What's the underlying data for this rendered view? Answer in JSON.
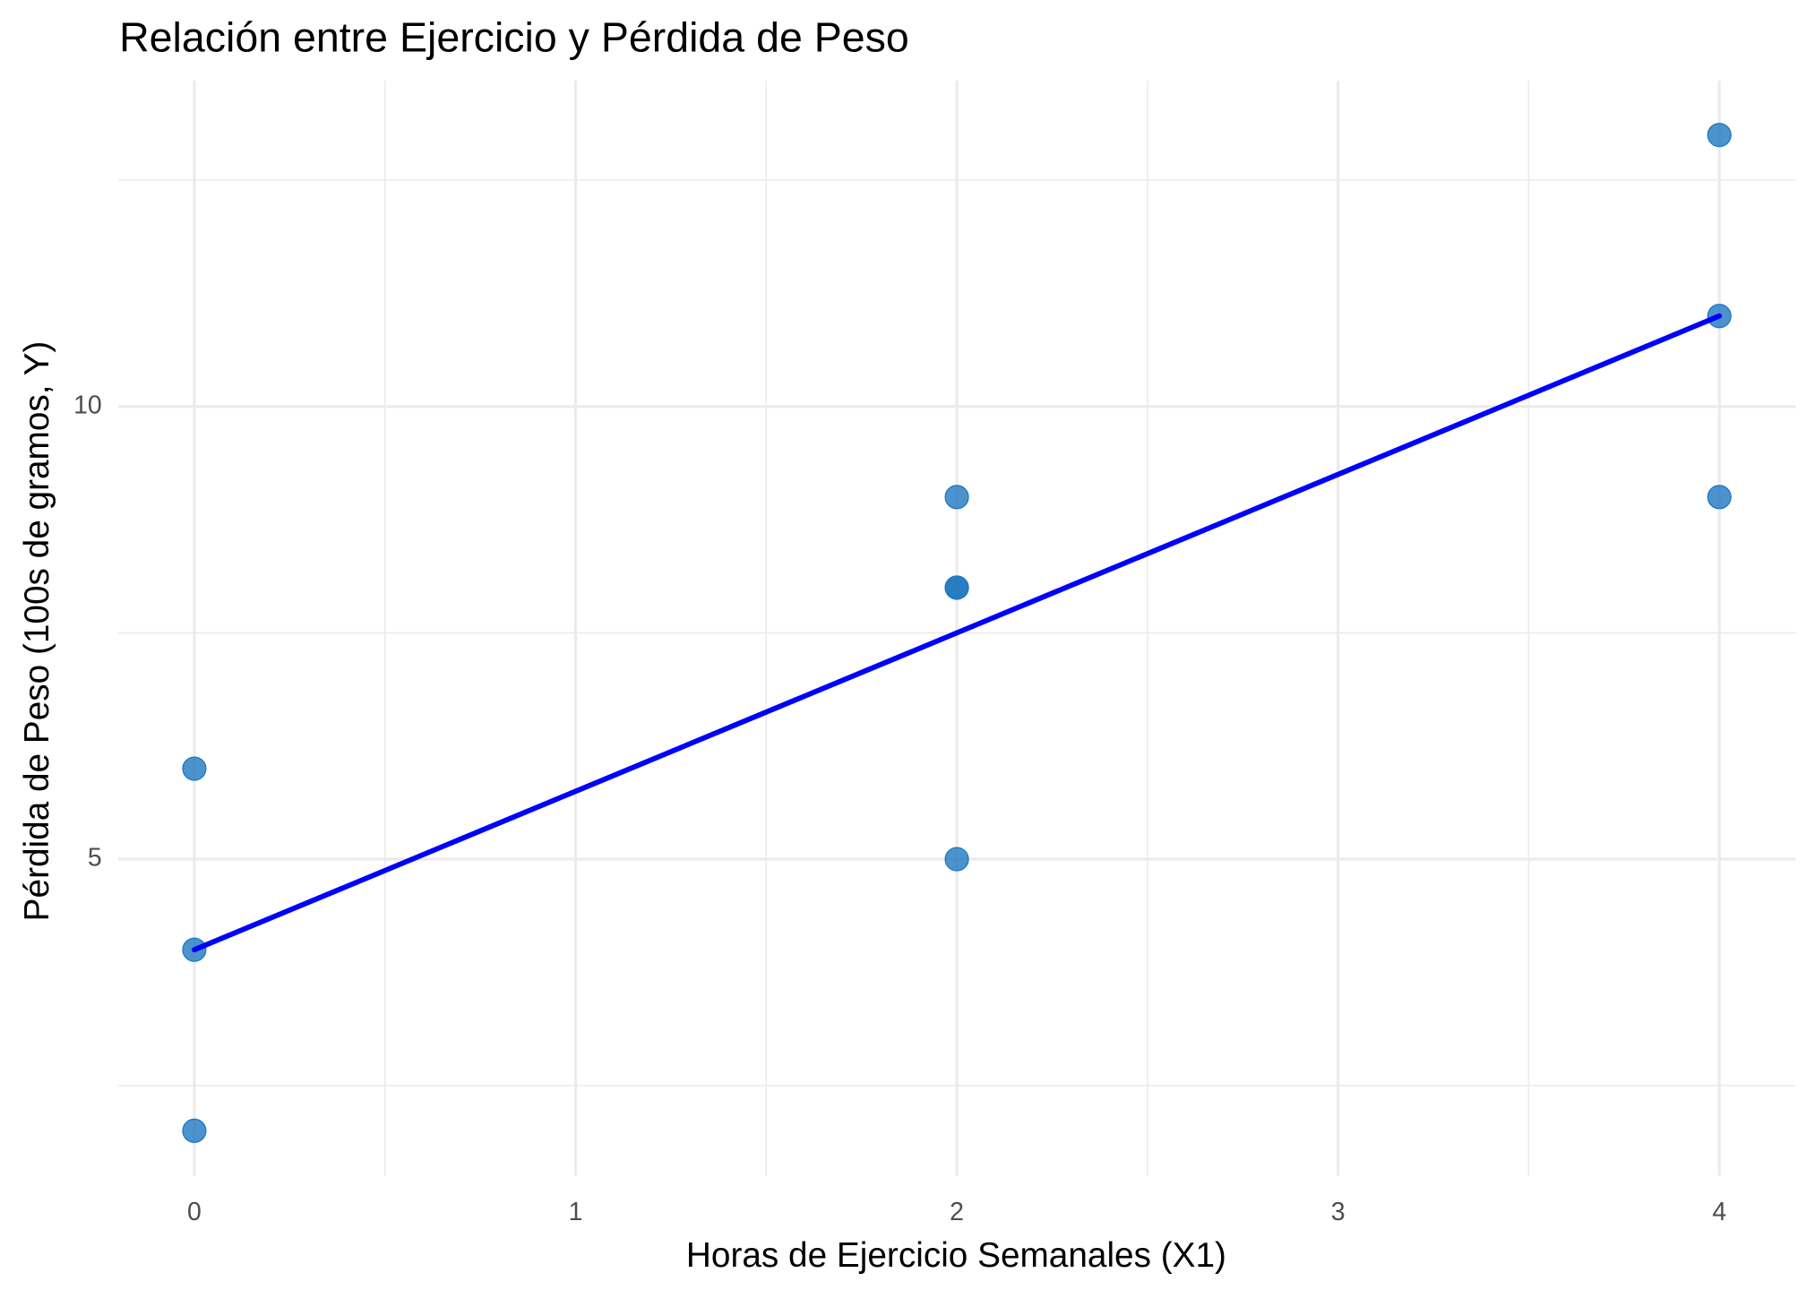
{
  "chart_data": {
    "type": "scatter",
    "title": "Relación entre Ejercicio y Pérdida de Peso",
    "x_label": "Horas de Ejercicio Semanales (X1)",
    "y_label": "Pérdida de Peso (100s de gramos, Y)",
    "x": [
      0,
      0,
      0,
      2,
      2,
      2,
      2,
      4,
      4,
      4
    ],
    "y": [
      2,
      4,
      6,
      5,
      8,
      8,
      9,
      9,
      11,
      13
    ],
    "color": "#1f78c1",
    "fit_line": {
      "x": [
        0,
        4
      ],
      "y": [
        4,
        11
      ],
      "color": "#0000ff"
    },
    "xlim": [
      -0.2,
      4.2
    ],
    "ylim": [
      1.5,
      13.6
    ],
    "xticks": [
      0,
      1,
      2,
      3,
      4
    ],
    "yticks": [
      5,
      10
    ],
    "x_minor_ticks": [
      0.5,
      1.5,
      2.5,
      3.5
    ],
    "y_minor_ticks": [
      2.5,
      7.5,
      12.5
    ],
    "grid": true
  }
}
